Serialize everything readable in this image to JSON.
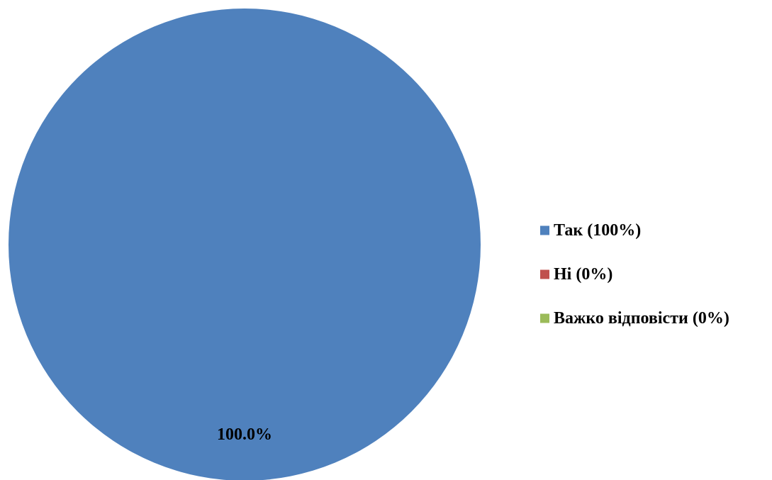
{
  "chart_data": {
    "type": "pie",
    "categories": [
      "Так (100%)",
      "Ні (0%)",
      "Важко відповісти (0%)"
    ],
    "values": [
      100,
      0,
      0
    ],
    "colors": [
      "#4F81BD",
      "#C0504D",
      "#9BBB59"
    ],
    "data_labels": [
      "100.0%"
    ],
    "legend_position": "right"
  }
}
